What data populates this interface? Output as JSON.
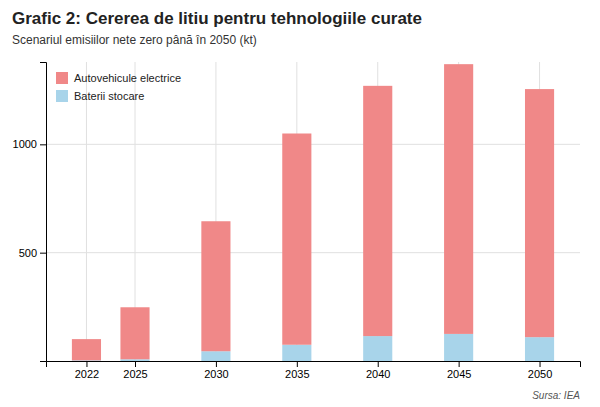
{
  "chart_data": {
    "type": "bar",
    "stacked": true,
    "title": "Grafic 2: Cererea de litiu pentru tehnologiile curate",
    "subtitle": "Scenariul emisiilor nete zero până în 2050 (kt)",
    "annotations": [
      "Sursa: IEA"
    ],
    "x": [
      2022,
      2025,
      2030,
      2035,
      2040,
      2045,
      2050
    ],
    "xlim": [
      2019.5,
      2052.5
    ],
    "xticks": [
      2022,
      2025,
      2030,
      2035,
      2040,
      2045,
      2050
    ],
    "series": [
      {
        "name": "Baterii stocare",
        "color": "#A8D4EA",
        "values": [
          3,
          8,
          45,
          75,
          115,
          125,
          110
        ]
      },
      {
        "name": "Autovehicule electrice",
        "color": "#F08888",
        "values": [
          98,
          240,
          600,
          975,
          1155,
          1245,
          1145
        ]
      }
    ],
    "ylim": [
      0,
      1380
    ],
    "yticks": [
      500,
      1000
    ],
    "grid": true,
    "legend": "upper left"
  }
}
